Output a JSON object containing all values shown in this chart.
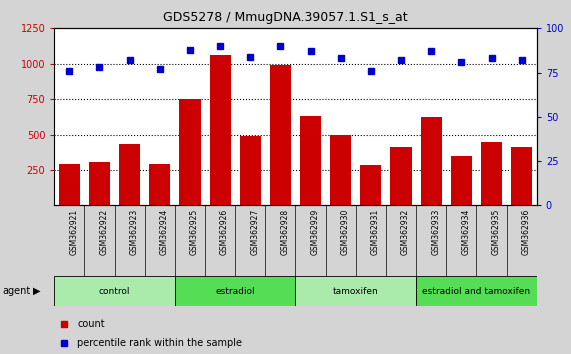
{
  "title": "GDS5278 / MmugDNA.39057.1.S1_s_at",
  "samples": [
    "GSM362921",
    "GSM362922",
    "GSM362923",
    "GSM362924",
    "GSM362925",
    "GSM362926",
    "GSM362927",
    "GSM362928",
    "GSM362929",
    "GSM362930",
    "GSM362931",
    "GSM362932",
    "GSM362933",
    "GSM362934",
    "GSM362935",
    "GSM362936"
  ],
  "counts": [
    290,
    305,
    435,
    290,
    750,
    1060,
    490,
    990,
    630,
    495,
    285,
    415,
    625,
    350,
    445,
    415
  ],
  "percentile_ranks": [
    76,
    78,
    82,
    77,
    88,
    90,
    84,
    90,
    87,
    83,
    76,
    82,
    87,
    81,
    83,
    82
  ],
  "groups": [
    {
      "name": "control",
      "start": 0,
      "end": 4,
      "color": "#aaeaaa"
    },
    {
      "name": "estradiol",
      "start": 4,
      "end": 8,
      "color": "#55dd55"
    },
    {
      "name": "tamoxifen",
      "start": 8,
      "end": 12,
      "color": "#aaeaaa"
    },
    {
      "name": "estradiol and tamoxifen",
      "start": 12,
      "end": 16,
      "color": "#55dd55"
    }
  ],
  "bar_color": "#cc0000",
  "dot_color": "#0000cc",
  "ylim_left": [
    0,
    1250
  ],
  "ylim_right": [
    0,
    100
  ],
  "yticks_left": [
    250,
    500,
    750,
    1000,
    1250
  ],
  "yticks_right": [
    0,
    25,
    50,
    75,
    100
  ],
  "grid_values": [
    250,
    500,
    750,
    1000
  ],
  "background_color": "#d4d4d4",
  "plot_bg_color": "#ffffff",
  "xtick_bg_color": "#c8c8c8",
  "left_axis_color": "#cc0000",
  "right_axis_color": "#0000cc"
}
